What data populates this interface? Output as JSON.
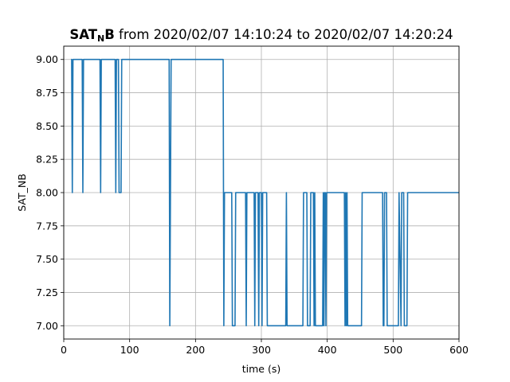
{
  "chart_data": {
    "type": "line",
    "title": {
      "name_main": "SAT",
      "name_sub": "N",
      "name_end": "B",
      "rest": " from 2020/02/07 14:10:24 to 2020/02/07 14:20:24"
    },
    "xlabel": "time (s)",
    "ylabel": "SAT_NB",
    "xlim": [
      0,
      600
    ],
    "ylim": [
      6.9,
      9.1
    ],
    "xticks": [
      0,
      100,
      200,
      300,
      400,
      500,
      600
    ],
    "yticks": [
      7.0,
      7.25,
      7.5,
      7.75,
      8.0,
      8.25,
      8.5,
      8.75,
      9.0
    ],
    "xtick_labels": [
      "0",
      "100",
      "200",
      "300",
      "400",
      "500",
      "600"
    ],
    "ytick_labels": [
      "7.00",
      "7.25",
      "7.50",
      "7.75",
      "8.00",
      "8.25",
      "8.50",
      "8.75",
      "9.00"
    ],
    "grid": true,
    "line_color": "#1f77b4",
    "series": [
      {
        "x": [
          11,
          12,
          13,
          14,
          27,
          28,
          29,
          30,
          54,
          55,
          56,
          57,
          77,
          78,
          79,
          80,
          83,
          84,
          87,
          88,
          159,
          160,
          161,
          162,
          163,
          164,
          242,
          243,
          244,
          245,
          255,
          256,
          260,
          261,
          262,
          263,
          276,
          277,
          278,
          279,
          289,
          290,
          291,
          292,
          295,
          296,
          297,
          298,
          300,
          301,
          302,
          303,
          308,
          309,
          310,
          311,
          337,
          338,
          339,
          340,
          363,
          364,
          369,
          370,
          374,
          375,
          379,
          380,
          381,
          382,
          393,
          394,
          395,
          396,
          397,
          398,
          399,
          400,
          426,
          427,
          428,
          429,
          430,
          431,
          452,
          453,
          484,
          485,
          486,
          487,
          490,
          491,
          508,
          509,
          512,
          513,
          516,
          517,
          521,
          522,
          523,
          524,
          600
        ],
        "y": [
          9,
          9,
          8,
          9,
          9,
          9,
          8,
          9,
          9,
          9,
          8,
          9,
          9,
          9,
          8,
          9,
          9,
          8,
          8,
          9,
          9,
          9,
          7,
          8,
          9,
          9,
          9,
          7,
          8,
          8,
          8,
          7,
          7,
          8,
          8,
          8,
          8,
          7,
          8,
          8,
          8,
          7,
          8,
          8,
          8,
          7,
          8,
          8,
          8,
          7,
          8,
          8,
          8,
          7,
          7,
          7,
          7,
          8,
          7,
          7,
          7,
          8,
          8,
          7,
          7,
          8,
          8,
          7,
          8,
          7,
          7,
          8,
          7,
          8,
          8,
          7,
          8,
          8,
          8,
          7,
          8,
          7,
          8,
          7,
          7,
          8,
          8,
          7,
          7,
          8,
          8,
          7,
          7,
          8,
          7,
          8,
          8,
          7,
          7,
          8,
          8,
          8,
          8
        ]
      }
    ]
  }
}
